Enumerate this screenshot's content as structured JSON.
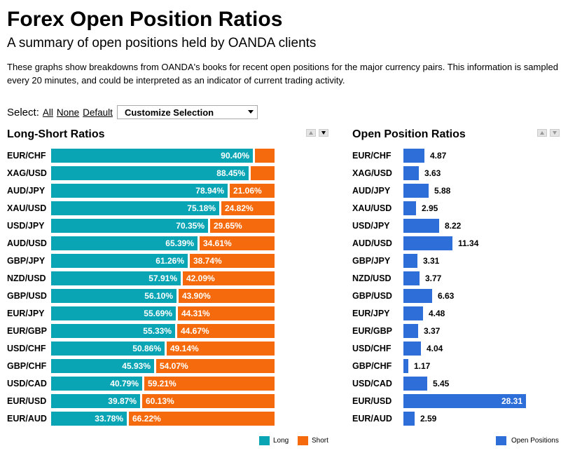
{
  "header": {
    "title": "Forex Open Position Ratios",
    "subtitle": "A summary of open positions held by OANDA clients",
    "description": "These graphs show breakdowns from OANDA's books for recent open positions for the major currency pairs. This information is sampled every 20 minutes, and could be interpreted as an indicator of current trading activity."
  },
  "select": {
    "label": "Select:",
    "all": "All",
    "none": "None",
    "default": "Default",
    "dropdown_value": "Customize Selection"
  },
  "colors": {
    "long": "#0aa5b5",
    "short": "#f56a0c",
    "open": "#2d6ed8"
  },
  "long_short_panel": {
    "title": "Long-Short Ratios",
    "legend": {
      "long": "Long",
      "short": "Short"
    }
  },
  "open_position_panel": {
    "title": "Open Position Ratios",
    "legend": {
      "open": "Open Positions"
    }
  },
  "chart_data": [
    {
      "type": "bar",
      "title": "Long-Short Ratios",
      "stacked": true,
      "orientation": "horizontal",
      "categories": [
        "EUR/CHF",
        "XAG/USD",
        "AUD/JPY",
        "XAU/USD",
        "USD/JPY",
        "AUD/USD",
        "GBP/JPY",
        "NZD/USD",
        "GBP/USD",
        "EUR/JPY",
        "EUR/GBP",
        "USD/CHF",
        "GBP/CHF",
        "USD/CAD",
        "EUR/USD",
        "EUR/AUD"
      ],
      "series": [
        {
          "name": "Long",
          "values": [
            90.4,
            88.45,
            78.94,
            75.18,
            70.35,
            65.39,
            61.26,
            57.91,
            56.1,
            55.69,
            55.33,
            50.86,
            45.93,
            40.79,
            39.87,
            33.78
          ],
          "labels": [
            "90.40%",
            "88.45%",
            "78.94%",
            "75.18%",
            "70.35%",
            "65.39%",
            "61.26%",
            "57.91%",
            "56.10%",
            "55.69%",
            "55.33%",
            "50.86%",
            "45.93%",
            "40.79%",
            "39.87%",
            "33.78%"
          ]
        },
        {
          "name": "Short",
          "values": [
            9.6,
            11.55,
            21.06,
            24.82,
            29.65,
            34.61,
            38.74,
            42.09,
            43.9,
            44.31,
            44.67,
            49.14,
            54.07,
            59.21,
            60.13,
            66.22
          ],
          "labels": [
            "",
            "",
            "21.06%",
            "24.82%",
            "29.65%",
            "34.61%",
            "38.74%",
            "42.09%",
            "43.90%",
            "44.31%",
            "44.67%",
            "49.14%",
            "54.07%",
            "59.21%",
            "60.13%",
            "66.22%"
          ]
        }
      ],
      "xlim": [
        0,
        100
      ],
      "legend": "bottom-right"
    },
    {
      "type": "bar",
      "title": "Open Position Ratios",
      "orientation": "horizontal",
      "categories": [
        "EUR/CHF",
        "XAG/USD",
        "AUD/JPY",
        "XAU/USD",
        "USD/JPY",
        "AUD/USD",
        "GBP/JPY",
        "NZD/USD",
        "GBP/USD",
        "EUR/JPY",
        "EUR/GBP",
        "USD/CHF",
        "GBP/CHF",
        "USD/CAD",
        "EUR/USD",
        "EUR/AUD"
      ],
      "series": [
        {
          "name": "Open Positions",
          "values": [
            4.87,
            3.63,
            5.88,
            2.95,
            8.22,
            11.34,
            3.31,
            3.77,
            6.63,
            4.48,
            3.37,
            4.04,
            1.17,
            5.45,
            28.31,
            2.59
          ],
          "labels": [
            "4.87",
            "3.63",
            "5.88",
            "2.95",
            "8.22",
            "11.34",
            "3.31",
            "3.77",
            "6.63",
            "4.48",
            "3.37",
            "4.04",
            "1.17",
            "5.45",
            "28.31",
            "2.59"
          ]
        }
      ],
      "legend": "bottom-right"
    }
  ]
}
